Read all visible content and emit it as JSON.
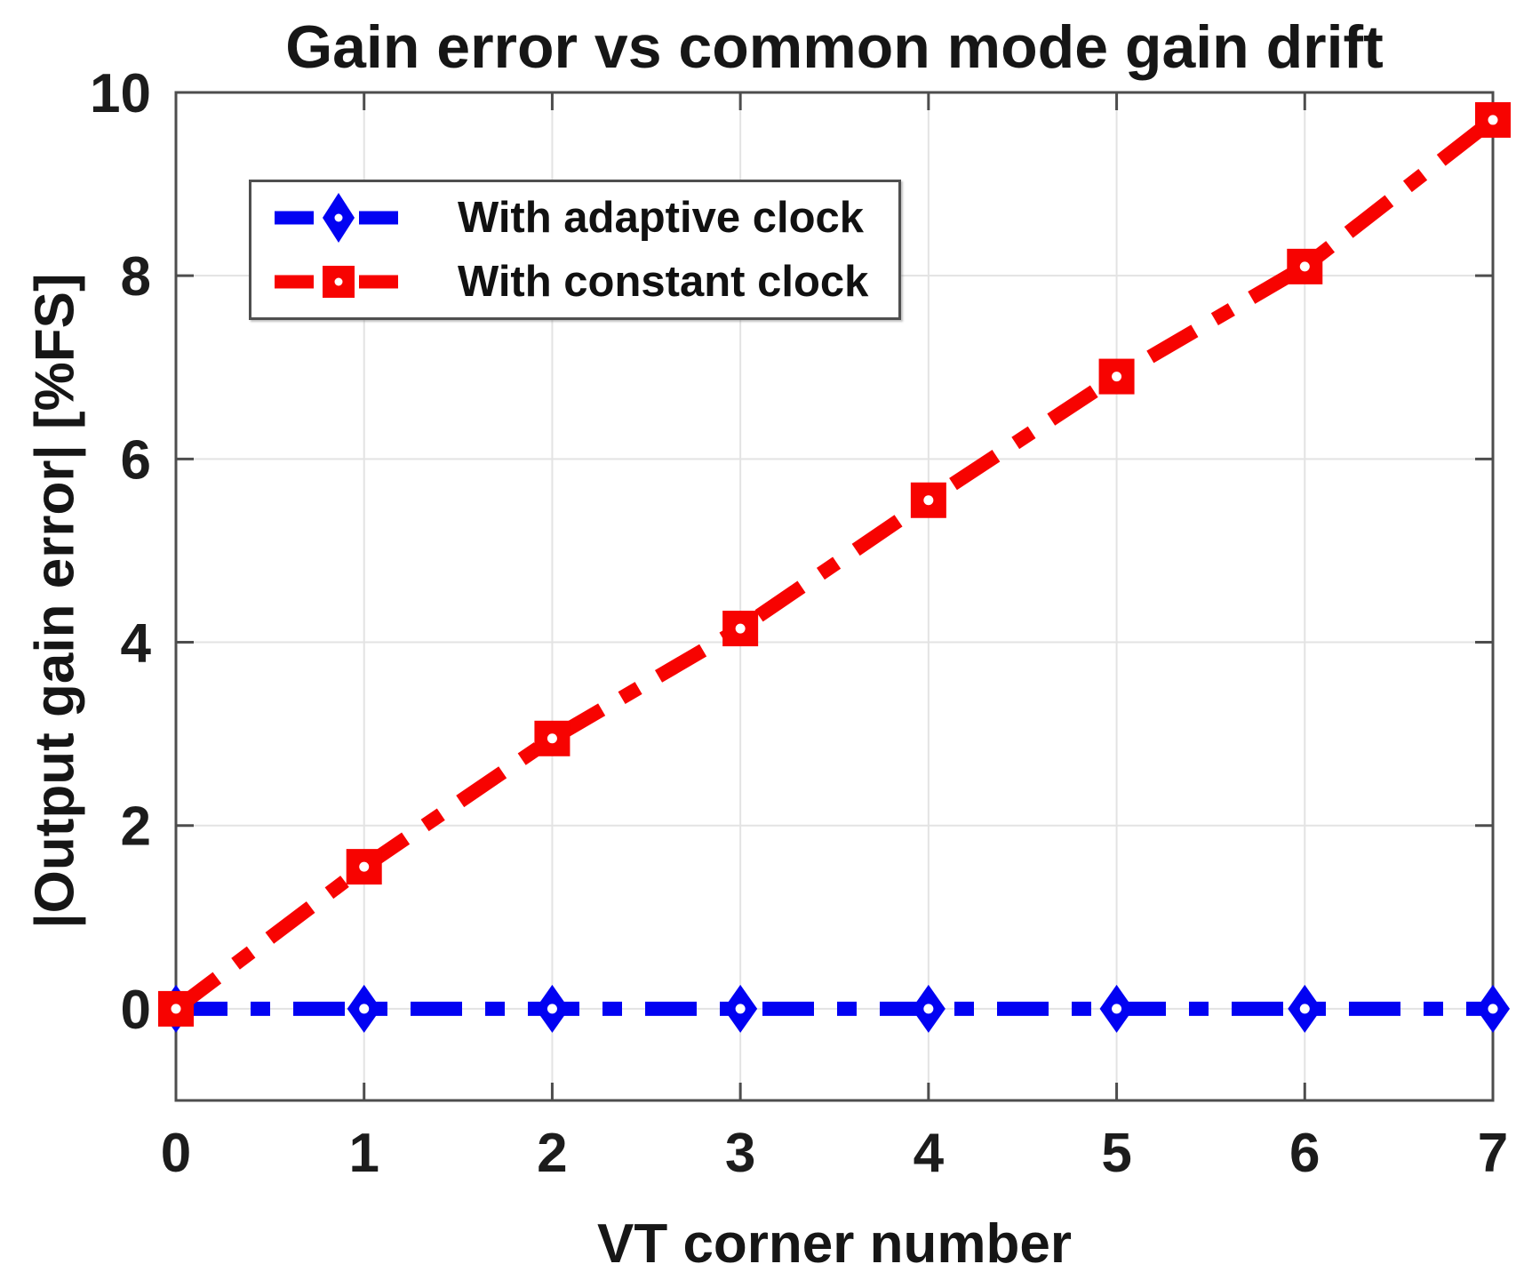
{
  "chart_data": {
    "type": "line",
    "title": "Gain error vs common mode gain drift",
    "xlabel": "VT corner number",
    "ylabel": "|Output gain error| [%FS]",
    "x": [
      0,
      1,
      2,
      3,
      4,
      5,
      6,
      7
    ],
    "series": [
      {
        "name": "With adaptive clock",
        "color": "#0202f2",
        "marker": "diamond",
        "linestyle": "dash-dot",
        "values": [
          0,
          0,
          0,
          0,
          0,
          0,
          0,
          0
        ]
      },
      {
        "name": "With constant clock",
        "color": "#f70301",
        "marker": "square",
        "linestyle": "dash-dot",
        "values": [
          0,
          1.55,
          2.95,
          4.15,
          5.55,
          6.9,
          8.1,
          9.7
        ]
      }
    ],
    "xlim": [
      0,
      7
    ],
    "ylim": [
      -1,
      10
    ],
    "xticks": [
      0,
      1,
      2,
      3,
      4,
      5,
      6,
      7
    ],
    "yticks": [
      0,
      2,
      4,
      6,
      8,
      10
    ],
    "grid": true,
    "legend_position": "northwest",
    "colors": {
      "axis": "#4d4d4d",
      "grid": "#e3e3e3",
      "tick_label": "#1c1c1c",
      "marker_pinhole": "#ffffff"
    }
  }
}
